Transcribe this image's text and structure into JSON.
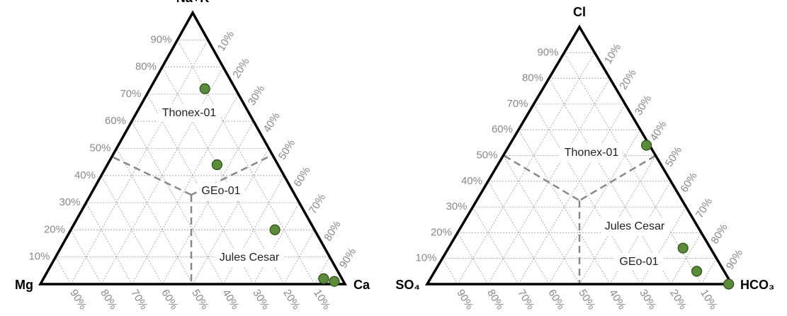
{
  "chart_data": [
    {
      "type": "ternary",
      "components": [
        {
          "name": "Na+K",
          "ticks": [
            {
              "value": 10,
              "label": "10%"
            },
            {
              "value": 20,
              "label": "20%"
            },
            {
              "value": 30,
              "label": "30%"
            },
            {
              "value": 40,
              "label": "40%"
            },
            {
              "value": 50,
              "label": "50%"
            },
            {
              "value": 60,
              "label": "60%"
            },
            {
              "value": 70,
              "label": "70%"
            },
            {
              "value": 80,
              "label": "80%"
            },
            {
              "value": 90,
              "label": "90%"
            }
          ]
        },
        {
          "name": "Ca",
          "ticks": [
            {
              "value": 10,
              "label": "10%"
            },
            {
              "value": 20,
              "label": "20%"
            },
            {
              "value": 30,
              "label": "30%"
            },
            {
              "value": 40,
              "label": "40%"
            },
            {
              "value": 50,
              "label": "50%"
            },
            {
              "value": 60,
              "label": "60%"
            },
            {
              "value": 70,
              "label": "70%"
            },
            {
              "value": 80,
              "label": "80%"
            },
            {
              "value": 90,
              "label": "90%"
            }
          ]
        },
        {
          "name": "Mg",
          "ticks": [
            {
              "value": 10,
              "label": "10%"
            },
            {
              "value": 20,
              "label": "20%"
            },
            {
              "value": 30,
              "label": "30%"
            },
            {
              "value": 40,
              "label": "40%"
            },
            {
              "value": 50,
              "label": "50%"
            },
            {
              "value": 60,
              "label": "60%"
            },
            {
              "value": 70,
              "label": "70%"
            },
            {
              "value": 80,
              "label": "80%"
            },
            {
              "value": 90,
              "label": "90%"
            }
          ]
        }
      ],
      "grid": true,
      "points": {
        "color": "#5b8c3a",
        "values": [
          [
            72,
            18,
            10
          ],
          [
            44,
            36,
            20
          ],
          [
            20,
            67,
            13
          ],
          [
            2,
            92,
            6
          ],
          [
            1,
            96,
            3
          ]
        ]
      },
      "annotations": [
        "Thonex-01",
        "GEo-01",
        "Jules Cesar"
      ]
    },
    {
      "type": "ternary",
      "components": [
        {
          "name": "Cl",
          "ticks": [
            {
              "value": 10,
              "label": "10%"
            },
            {
              "value": 20,
              "label": "20%"
            },
            {
              "value": 30,
              "label": "30%"
            },
            {
              "value": 40,
              "label": "40%"
            },
            {
              "value": 50,
              "label": "50%"
            },
            {
              "value": 60,
              "label": "60%"
            },
            {
              "value": 70,
              "label": "70%"
            },
            {
              "value": 80,
              "label": "80%"
            },
            {
              "value": 90,
              "label": "90%"
            }
          ]
        },
        {
          "name": "HCO₃",
          "ticks": [
            {
              "value": 10,
              "label": "10%"
            },
            {
              "value": 20,
              "label": "20%"
            },
            {
              "value": 30,
              "label": "30%"
            },
            {
              "value": 40,
              "label": "40%"
            },
            {
              "value": 50,
              "label": "50%"
            },
            {
              "value": 60,
              "label": "60%"
            },
            {
              "value": 70,
              "label": "70%"
            },
            {
              "value": 80,
              "label": "80%"
            },
            {
              "value": 90,
              "label": "90%"
            }
          ]
        },
        {
          "name": "SO₄",
          "ticks": [
            {
              "value": 10,
              "label": "10%"
            },
            {
              "value": 20,
              "label": "20%"
            },
            {
              "value": 30,
              "label": "30%"
            },
            {
              "value": 40,
              "label": "40%"
            },
            {
              "value": 50,
              "label": "50%"
            },
            {
              "value": 60,
              "label": "60%"
            },
            {
              "value": 70,
              "label": "70%"
            },
            {
              "value": 80,
              "label": "80%"
            },
            {
              "value": 90,
              "label": "90%"
            }
          ]
        }
      ],
      "grid": true,
      "points": {
        "color": "#5b8c3a",
        "values": [
          [
            54,
            45,
            1
          ],
          [
            14,
            77,
            9
          ],
          [
            5,
            86,
            9
          ],
          [
            0,
            99,
            1
          ]
        ]
      },
      "annotations": [
        "Thonex-01",
        "Jules Cesar",
        "GEo-01"
      ]
    }
  ]
}
